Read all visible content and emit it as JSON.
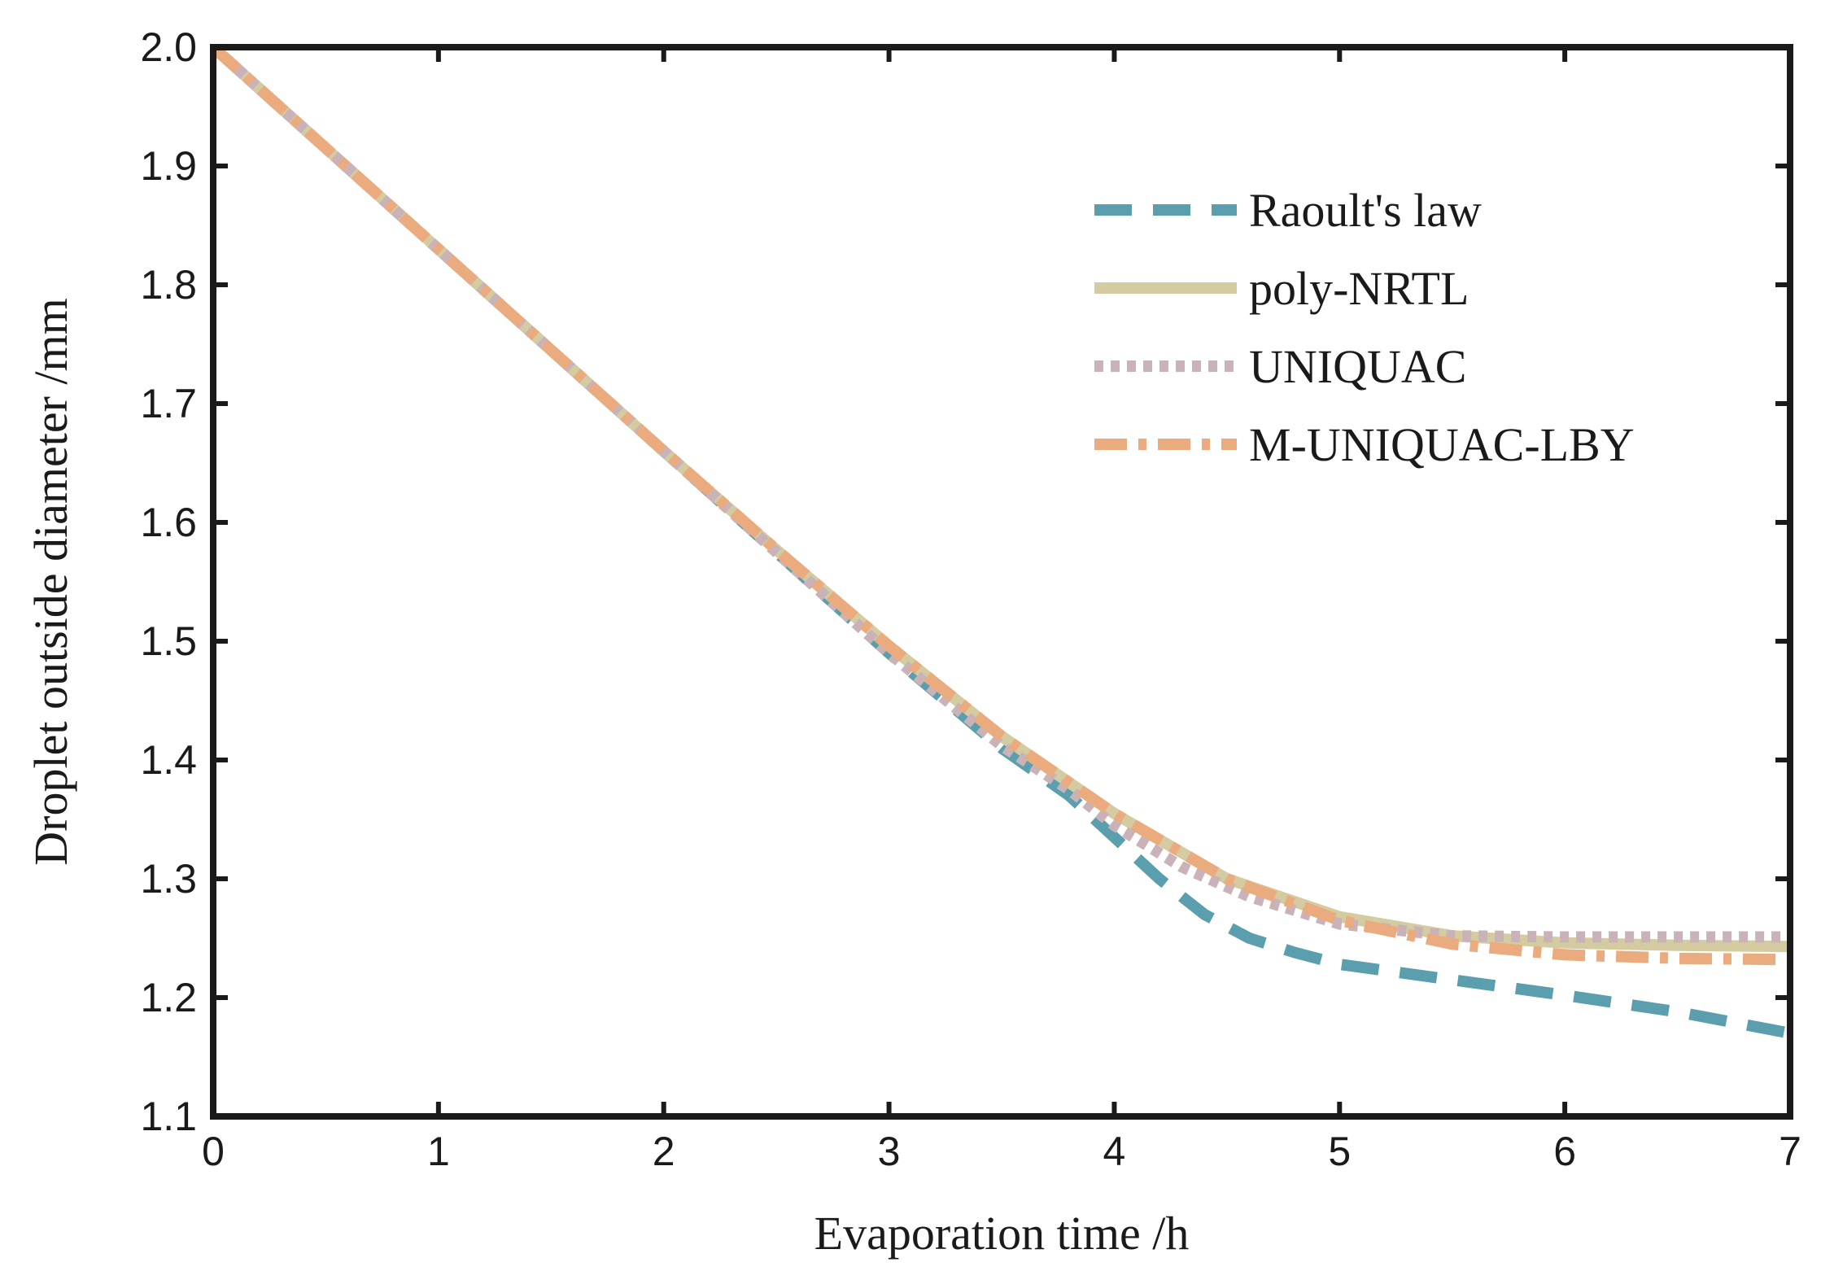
{
  "chart_data": {
    "type": "line",
    "title": "",
    "xlabel": "Evaporation time /h",
    "ylabel": "Droplet outside diameter /mm",
    "xlim": [
      0,
      7
    ],
    "ylim": [
      1.1,
      2.0
    ],
    "xticks": [
      "0",
      "1",
      "2",
      "3",
      "4",
      "5",
      "6",
      "7"
    ],
    "yticks": [
      "1.1",
      "1.2",
      "1.3",
      "1.4",
      "1.5",
      "1.6",
      "1.7",
      "1.8",
      "1.9",
      "2.0"
    ],
    "grid": false,
    "legend_position": "top-right",
    "series": [
      {
        "name": "Raoult's law",
        "color": "#5b9eae",
        "style": "dashed",
        "x": [
          0,
          0.5,
          1,
          1.5,
          2,
          2.5,
          3,
          3.5,
          3.8,
          4.0,
          4.2,
          4.4,
          4.6,
          4.8,
          5.0,
          5.5,
          6.0,
          6.5,
          7.0
        ],
        "y": [
          2.0,
          1.915,
          1.83,
          1.745,
          1.66,
          1.575,
          1.49,
          1.41,
          1.37,
          1.335,
          1.3,
          1.27,
          1.25,
          1.238,
          1.228,
          1.215,
          1.202,
          1.188,
          1.17
        ]
      },
      {
        "name": "poly-NRTL",
        "color": "#d4cca0",
        "style": "solid",
        "x": [
          0,
          0.5,
          1,
          1.5,
          2,
          2.5,
          3,
          3.5,
          4.0,
          4.5,
          5.0,
          5.5,
          6.0,
          6.5,
          7.0
        ],
        "y": [
          2.0,
          1.915,
          1.83,
          1.745,
          1.66,
          1.577,
          1.496,
          1.42,
          1.355,
          1.3,
          1.268,
          1.252,
          1.246,
          1.244,
          1.243
        ]
      },
      {
        "name": "UNIQUAC",
        "color": "#c9b3b9",
        "style": "dotted",
        "x": [
          0,
          0.5,
          1,
          1.5,
          2,
          2.5,
          3,
          3.5,
          3.8,
          4.0,
          4.3,
          4.6,
          5.0,
          5.5,
          6.0,
          6.5,
          7.0
        ],
        "y": [
          2.0,
          1.915,
          1.83,
          1.745,
          1.66,
          1.575,
          1.49,
          1.412,
          1.375,
          1.345,
          1.31,
          1.285,
          1.262,
          1.252,
          1.251,
          1.251,
          1.251
        ]
      },
      {
        "name": "M-UNIQUAC-LBY",
        "color": "#eaab7e",
        "style": "dashdot",
        "x": [
          0,
          0.5,
          1,
          1.5,
          2,
          2.5,
          3,
          3.5,
          4.0,
          4.5,
          5.0,
          5.5,
          6.0,
          6.5,
          7.0
        ],
        "y": [
          2.0,
          1.915,
          1.83,
          1.745,
          1.66,
          1.577,
          1.496,
          1.42,
          1.355,
          1.3,
          1.265,
          1.245,
          1.236,
          1.233,
          1.232
        ]
      }
    ]
  }
}
